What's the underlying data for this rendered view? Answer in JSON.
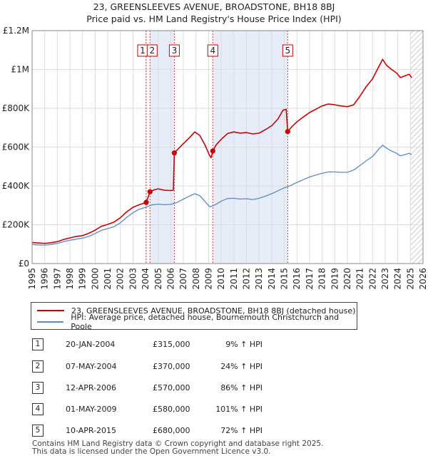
{
  "title": "23, GREENSLEEVES AVENUE, BROADSTONE, BH18 8BJ",
  "subtitle": "Price paid vs. HM Land Registry's House Price Index (HPI)",
  "colors": {
    "price": "#cc0000",
    "hpi": "#5a8ac6",
    "shade": "#e6ecf8",
    "hatch": "#bbbbbb",
    "grid": "#dddddd"
  },
  "chart_data": {
    "type": "line",
    "title": "23, GREENSLEEVES AVENUE, BROADSTONE, BH18 8BJ",
    "subtitle": "Price paid vs. HM Land Registry's House Price Index (HPI)",
    "xlim": [
      1995,
      2026
    ],
    "ylim": [
      0,
      1200000
    ],
    "x_ticks": [
      1995,
      1996,
      1997,
      1998,
      1999,
      2000,
      2001,
      2002,
      2003,
      2004,
      2005,
      2006,
      2007,
      2008,
      2009,
      2010,
      2011,
      2012,
      2013,
      2014,
      2015,
      2016,
      2017,
      2018,
      2019,
      2020,
      2021,
      2022,
      2023,
      2024,
      2025,
      2026
    ],
    "y_ticks": [
      {
        "value": 0,
        "label": "£0"
      },
      {
        "value": 200000,
        "label": "£200K"
      },
      {
        "value": 400000,
        "label": "£400K"
      },
      {
        "value": 600000,
        "label": "£600K"
      },
      {
        "value": 800000,
        "label": "£800K"
      },
      {
        "value": 1000000,
        "label": "£1M"
      },
      {
        "value": 1200000,
        "label": "£1.2M"
      }
    ],
    "grid": true,
    "legend_position": "below",
    "series": [
      {
        "name": "23, GREENSLEEVES AVENUE, BROADSTONE, BH18 8BJ (detached house)",
        "points": [
          [
            1995.0,
            108000
          ],
          [
            1995.5,
            106000
          ],
          [
            1996.0,
            104000
          ],
          [
            1996.5,
            107000
          ],
          [
            1997.0,
            113000
          ],
          [
            1997.5,
            124000
          ],
          [
            1998.0,
            132000
          ],
          [
            1998.5,
            140000
          ],
          [
            1999.0,
            144000
          ],
          [
            1999.5,
            156000
          ],
          [
            2000.0,
            172000
          ],
          [
            2000.5,
            192000
          ],
          [
            2001.0,
            202000
          ],
          [
            2001.5,
            214000
          ],
          [
            2002.0,
            236000
          ],
          [
            2002.5,
            266000
          ],
          [
            2003.0,
            290000
          ],
          [
            2003.5,
            303000
          ],
          [
            2004.05,
            315000
          ],
          [
            2004.35,
            370000
          ],
          [
            2004.7,
            380000
          ],
          [
            2005.0,
            385000
          ],
          [
            2005.5,
            378000
          ],
          [
            2006.0,
            376000
          ],
          [
            2006.2,
            378000
          ],
          [
            2006.28,
            570000
          ],
          [
            2006.5,
            585000
          ],
          [
            2007.0,
            618000
          ],
          [
            2007.5,
            650000
          ],
          [
            2007.9,
            678000
          ],
          [
            2008.3,
            660000
          ],
          [
            2008.7,
            612000
          ],
          [
            2009.05,
            560000
          ],
          [
            2009.2,
            545000
          ],
          [
            2009.33,
            580000
          ],
          [
            2009.6,
            612000
          ],
          [
            2010.0,
            640000
          ],
          [
            2010.5,
            670000
          ],
          [
            2011.0,
            678000
          ],
          [
            2011.5,
            672000
          ],
          [
            2012.0,
            675000
          ],
          [
            2012.5,
            668000
          ],
          [
            2013.0,
            672000
          ],
          [
            2013.5,
            690000
          ],
          [
            2014.0,
            710000
          ],
          [
            2014.5,
            745000
          ],
          [
            2014.9,
            790000
          ],
          [
            2015.15,
            795000
          ],
          [
            2015.27,
            680000
          ],
          [
            2015.6,
            705000
          ],
          [
            2016.0,
            730000
          ],
          [
            2016.5,
            755000
          ],
          [
            2017.0,
            778000
          ],
          [
            2017.5,
            795000
          ],
          [
            2018.0,
            812000
          ],
          [
            2018.5,
            822000
          ],
          [
            2019.0,
            818000
          ],
          [
            2019.5,
            812000
          ],
          [
            2020.0,
            808000
          ],
          [
            2020.5,
            818000
          ],
          [
            2021.0,
            862000
          ],
          [
            2021.5,
            912000
          ],
          [
            2022.0,
            952000
          ],
          [
            2022.5,
            1015000
          ],
          [
            2022.8,
            1052000
          ],
          [
            2023.1,
            1022000
          ],
          [
            2023.5,
            1000000
          ],
          [
            2023.9,
            982000
          ],
          [
            2024.2,
            958000
          ],
          [
            2024.6,
            968000
          ],
          [
            2024.9,
            975000
          ],
          [
            2025.1,
            958000
          ]
        ]
      },
      {
        "name": "HPI: Average price, detached house, Bournemouth Christchurch and Poole",
        "points": [
          [
            1995.0,
            98000
          ],
          [
            1995.5,
            96000
          ],
          [
            1996.0,
            95000
          ],
          [
            1996.5,
            98000
          ],
          [
            1997.0,
            104000
          ],
          [
            1997.5,
            113000
          ],
          [
            1998.0,
            120000
          ],
          [
            1998.5,
            126000
          ],
          [
            1999.0,
            131000
          ],
          [
            1999.5,
            140000
          ],
          [
            2000.0,
            155000
          ],
          [
            2000.5,
            171000
          ],
          [
            2001.0,
            180000
          ],
          [
            2001.5,
            190000
          ],
          [
            2002.0,
            210000
          ],
          [
            2002.5,
            238000
          ],
          [
            2003.0,
            262000
          ],
          [
            2003.5,
            280000
          ],
          [
            2004.0,
            290000
          ],
          [
            2004.5,
            302000
          ],
          [
            2005.0,
            306000
          ],
          [
            2005.5,
            303000
          ],
          [
            2006.0,
            305000
          ],
          [
            2006.5,
            315000
          ],
          [
            2007.0,
            332000
          ],
          [
            2007.5,
            348000
          ],
          [
            2007.9,
            360000
          ],
          [
            2008.3,
            350000
          ],
          [
            2008.7,
            320000
          ],
          [
            2009.1,
            292000
          ],
          [
            2009.5,
            302000
          ],
          [
            2010.0,
            322000
          ],
          [
            2010.5,
            335000
          ],
          [
            2011.0,
            336000
          ],
          [
            2011.5,
            332000
          ],
          [
            2012.0,
            334000
          ],
          [
            2012.5,
            330000
          ],
          [
            2013.0,
            336000
          ],
          [
            2013.5,
            347000
          ],
          [
            2014.0,
            360000
          ],
          [
            2014.5,
            375000
          ],
          [
            2015.0,
            390000
          ],
          [
            2015.5,
            402000
          ],
          [
            2016.0,
            418000
          ],
          [
            2016.5,
            432000
          ],
          [
            2017.0,
            446000
          ],
          [
            2017.5,
            456000
          ],
          [
            2018.0,
            465000
          ],
          [
            2018.5,
            472000
          ],
          [
            2019.0,
            472000
          ],
          [
            2019.5,
            470000
          ],
          [
            2020.0,
            470000
          ],
          [
            2020.5,
            482000
          ],
          [
            2021.0,
            505000
          ],
          [
            2021.5,
            530000
          ],
          [
            2022.0,
            552000
          ],
          [
            2022.5,
            590000
          ],
          [
            2022.8,
            610000
          ],
          [
            2023.1,
            595000
          ],
          [
            2023.5,
            580000
          ],
          [
            2023.9,
            568000
          ],
          [
            2024.2,
            555000
          ],
          [
            2024.6,
            562000
          ],
          [
            2024.9,
            568000
          ],
          [
            2025.1,
            560000
          ]
        ]
      }
    ],
    "sales": [
      {
        "id": "1",
        "x": 2004.05,
        "price": 315000
      },
      {
        "id": "2",
        "x": 2004.35,
        "price": 370000
      },
      {
        "id": "3",
        "x": 2006.28,
        "price": 570000
      },
      {
        "id": "4",
        "x": 2009.33,
        "price": 580000
      },
      {
        "id": "5",
        "x": 2015.27,
        "price": 680000
      }
    ],
    "shaded_ranges": [
      [
        2004.35,
        2006.28
      ],
      [
        2009.33,
        2015.27
      ]
    ],
    "hatch_from": 2025.0
  },
  "legend": {
    "price": "23, GREENSLEEVES AVENUE, BROADSTONE, BH18 8BJ (detached house)",
    "hpi": "HPI: Average price, detached house, Bournemouth Christchurch and Poole"
  },
  "transactions": [
    {
      "num": "1",
      "date": "20-JAN-2004",
      "price": "£315,000",
      "pct": "9% ↑ HPI"
    },
    {
      "num": "2",
      "date": "07-MAY-2004",
      "price": "£370,000",
      "pct": "24% ↑ HPI"
    },
    {
      "num": "3",
      "date": "12-APR-2006",
      "price": "£570,000",
      "pct": "86% ↑ HPI"
    },
    {
      "num": "4",
      "date": "01-MAY-2009",
      "price": "£580,000",
      "pct": "101% ↑ HPI"
    },
    {
      "num": "5",
      "date": "10-APR-2015",
      "price": "£680,000",
      "pct": "72% ↑ HPI"
    }
  ],
  "footer": {
    "line1": "Contains HM Land Registry data © Crown copyright and database right 2025.",
    "line2": "This data is licensed under the Open Government Licence v3.0."
  }
}
